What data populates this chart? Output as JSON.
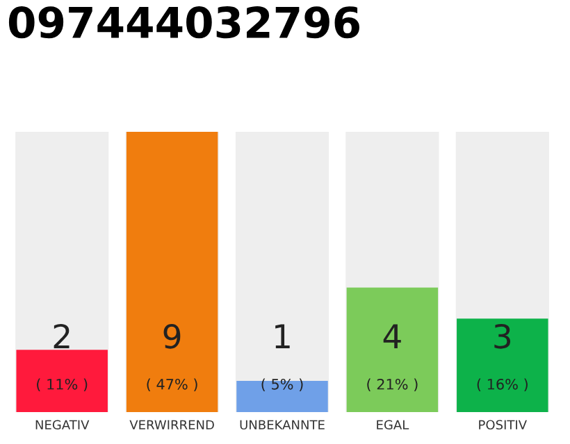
{
  "chart_data": {
    "type": "bar",
    "title": "097444032796",
    "categories": [
      "NEGATIV",
      "VERWIRREND",
      "UNBEKANNTE",
      "EGAL",
      "POSITIV"
    ],
    "values": [
      2,
      9,
      1,
      4,
      3
    ],
    "colors": [
      "#ff1a3c",
      "#f07d0e",
      "#6fa0e8",
      "#7ccb5a",
      "#0db24a"
    ],
    "value_labels": [
      "2\n( 11% )",
      "9\n( 47% )",
      "1\n( 5% )",
      "4\n( 21% )",
      "3\n( 16% )"
    ],
    "grid": false
  }
}
